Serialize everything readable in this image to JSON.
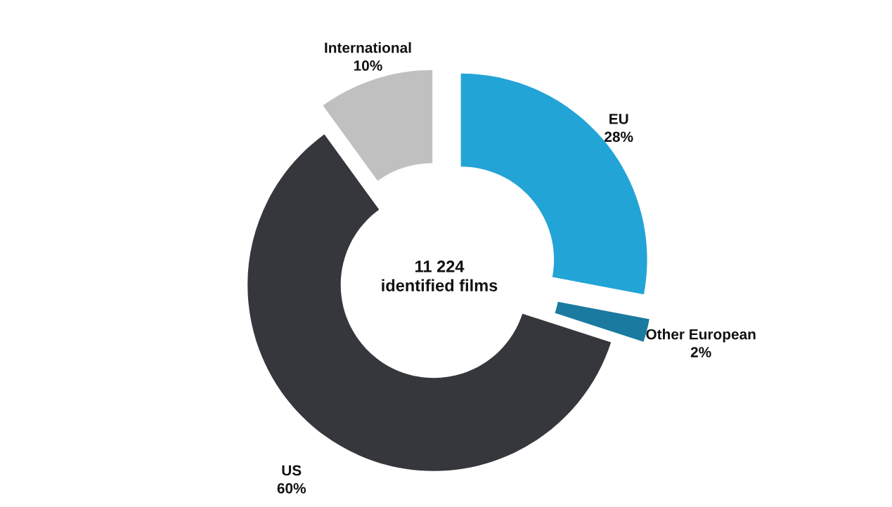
{
  "chart_data": {
    "type": "donut",
    "categories": [
      "EU",
      "Other European",
      "US",
      "International"
    ],
    "values": [
      28,
      2,
      60,
      10
    ],
    "value_labels": [
      "28%",
      "2%",
      "60%",
      "10%"
    ],
    "colors": [
      "#23a4d6",
      "#1b7aa0",
      "#36373d",
      "#c0c0c0"
    ],
    "annotations": [
      "11 224\nidentified films"
    ],
    "legend": false
  }
}
